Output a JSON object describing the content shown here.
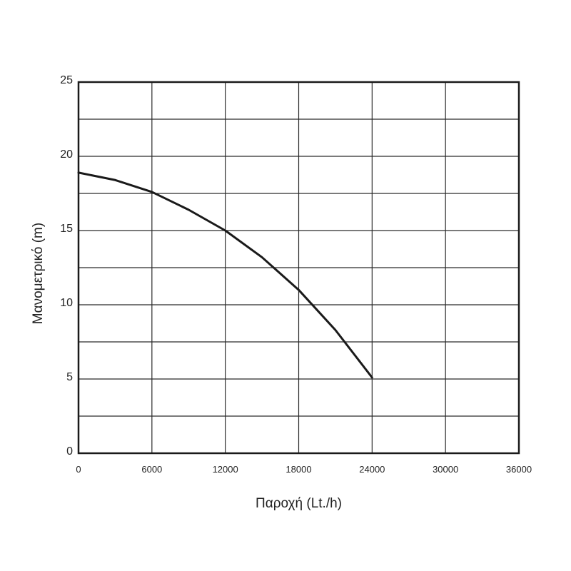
{
  "chart_data": {
    "type": "line",
    "title": "",
    "xlabel": "Παροχή (Lt./h)",
    "ylabel": "Μανομετρικό  (m)",
    "xlim": [
      0,
      36000
    ],
    "ylim": [
      0,
      25
    ],
    "x_ticks": [
      0,
      6000,
      12000,
      18000,
      24000,
      30000,
      36000
    ],
    "x_tick_labels": [
      "0",
      "6000",
      "12000",
      "18000",
      "24000",
      "30000",
      "36000"
    ],
    "y_ticks": [
      0,
      5,
      10,
      15,
      20,
      25
    ],
    "y_tick_labels": [
      "0",
      "5",
      "10",
      "15",
      "20",
      "25"
    ],
    "grid": true,
    "legend": "none",
    "series": [
      {
        "x": [
          0,
          3000,
          6000,
          9000,
          12000,
          15000,
          18000,
          21000,
          24000
        ],
        "y": [
          18.9,
          18.4,
          17.6,
          16.4,
          15.0,
          13.2,
          11.0,
          8.3,
          5.1
        ]
      }
    ],
    "colors": {
      "line": "#1a1a1a",
      "grid": "#2a2a2a",
      "text": "#222222"
    }
  }
}
